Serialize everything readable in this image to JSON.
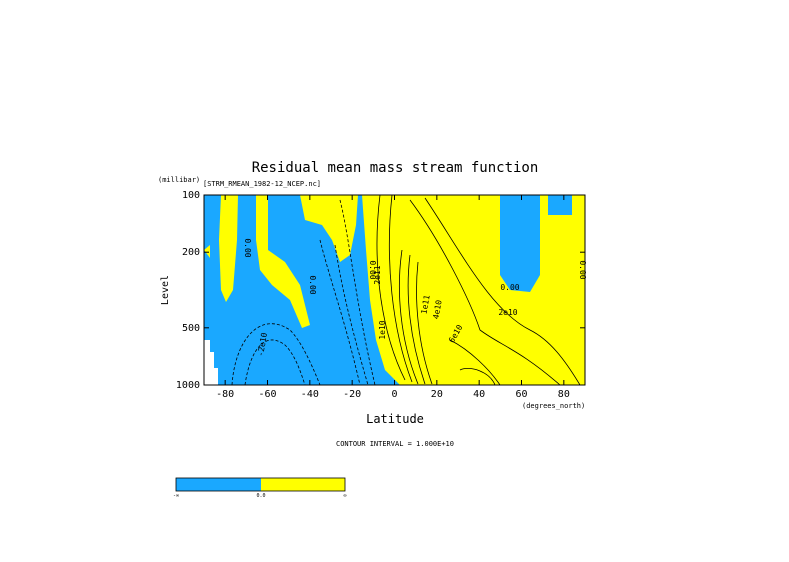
{
  "chart_data": {
    "type": "contour",
    "title": "Residual mean mass stream function",
    "subtitle": "[STRM_RMEAN_1982-12_NCEP.nc]",
    "x_label": "Latitude",
    "x_units": "(degrees_north)",
    "y_label": "Level",
    "y_units": "(millibar)",
    "footnote": "CONTOUR INTERVAL = 1.000E+10",
    "xlim": [
      -90,
      90
    ],
    "xticks": [
      -80,
      -60,
      -40,
      -20,
      0,
      20,
      40,
      60,
      80
    ],
    "ylim": [
      1000,
      100
    ],
    "yticks": [
      100,
      200,
      500,
      1000
    ],
    "y_scale": "log",
    "negative_color": "#1aa8ff",
    "positive_color": "#ffff00",
    "contour_labels": [
      "0.00",
      "0.00",
      "0.00",
      "0.00",
      "0.00",
      "-2e10",
      "2e10",
      "1e11",
      "2e11",
      "4e10",
      "6e10",
      "1e10"
    ],
    "colorbar_labels": [
      "-∞",
      "0.0",
      "∞"
    ]
  }
}
